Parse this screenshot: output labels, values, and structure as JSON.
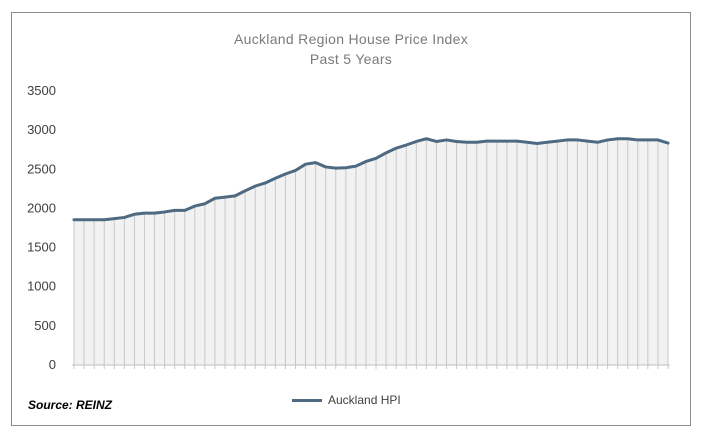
{
  "chart_data": {
    "type": "area",
    "title": "Auckland Region House Price Index",
    "subtitle": "Past 5 Years",
    "xlabel": "",
    "ylabel": "",
    "ylim": [
      0,
      3500
    ],
    "yticks": [
      "0",
      "500",
      "1000",
      "1500",
      "2000",
      "2500",
      "3000",
      "3500"
    ],
    "grid": false,
    "legend_position": "bottom",
    "series": [
      {
        "name": "Auckland HPI",
        "color": "#4e6a82",
        "fill": "#f2f2f2",
        "drop_lines": "#c8c8c8",
        "values": [
          1855,
          1855,
          1855,
          1855,
          1870,
          1885,
          1925,
          1940,
          1940,
          1955,
          1975,
          1975,
          2030,
          2060,
          2130,
          2145,
          2160,
          2225,
          2285,
          2325,
          2385,
          2440,
          2485,
          2565,
          2585,
          2530,
          2515,
          2520,
          2540,
          2600,
          2640,
          2710,
          2770,
          2810,
          2855,
          2890,
          2855,
          2875,
          2855,
          2845,
          2845,
          2860,
          2860,
          2860,
          2860,
          2845,
          2830,
          2845,
          2860,
          2875,
          2875,
          2860,
          2845,
          2875,
          2890,
          2890,
          2875,
          2875,
          2875,
          2835
        ]
      }
    ]
  },
  "footer": {
    "source": "Source: REINZ",
    "legend_label": "Auckland HPI"
  }
}
